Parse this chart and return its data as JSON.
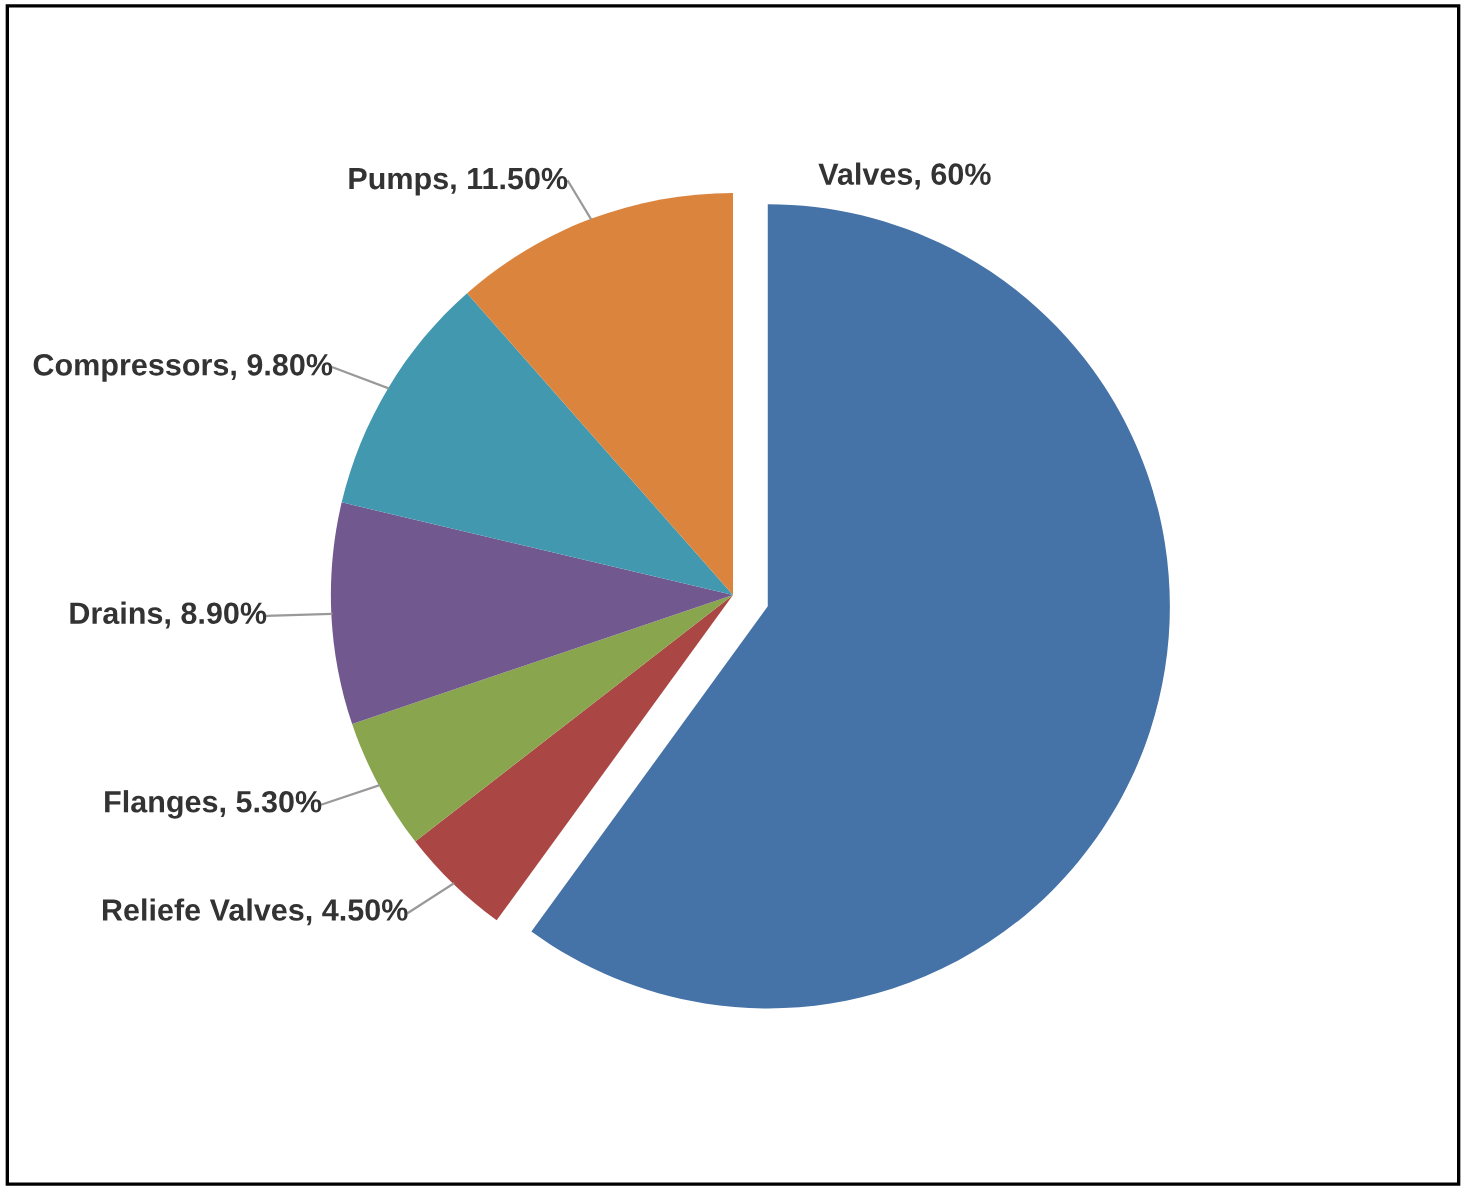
{
  "chart_data": {
    "type": "pie",
    "categories": [
      "Valves",
      "Reliefe Valves",
      "Flanges",
      "Drains",
      "Compressors",
      "Pumps"
    ],
    "values": [
      60,
      4.5,
      5.3,
      8.9,
      9.8,
      11.5
    ],
    "value_labels": [
      "60%",
      "4.50%",
      "5.30%",
      "8.90%",
      "9.80%",
      "11.50%"
    ],
    "colors": [
      "#4572a7",
      "#aa4643",
      "#89a54e",
      "#71588f",
      "#4198af",
      "#db843d"
    ]
  }
}
